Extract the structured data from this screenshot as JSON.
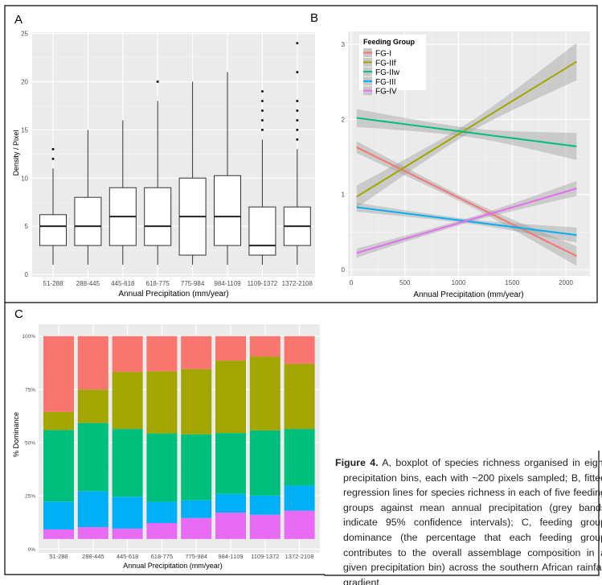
{
  "caption": {
    "label": "Figure 4.",
    "text": "A, boxplot of species richness organised in eight precipitation bins, each with ~200 pixels sampled; B, fitted regression lines for species richness in each of five feeding groups against mean annual precipitation (grey bands indicate 95% confidence intervals); C, feeding group dominance (the percentage that each feeding group contributes to the overall assemblage composition in a given precipitation bin) across the southern African rainfall gradient."
  },
  "chart_data": [
    {
      "panel": "A",
      "type": "boxplot",
      "xlabel": "Annual Precipitation (mm/year)",
      "ylabel": "Density / Pixel",
      "ylim": [
        0,
        25
      ],
      "yticks": [
        0,
        5,
        10,
        15,
        20,
        25
      ],
      "grid": true,
      "categories": [
        "51-288",
        "288-445",
        "445-618",
        "618-775",
        "775-984",
        "984-1109",
        "1109-1372",
        "1372-2108"
      ],
      "boxes": [
        {
          "min": 1,
          "q1": 3,
          "median": 5,
          "q3": 6.2,
          "max": 11,
          "outliers": [
            12,
            13
          ]
        },
        {
          "min": 1,
          "q1": 3,
          "median": 5,
          "q3": 8,
          "max": 15,
          "outliers": []
        },
        {
          "min": 1,
          "q1": 3,
          "median": 6,
          "q3": 9,
          "max": 16,
          "outliers": []
        },
        {
          "min": 1,
          "q1": 3,
          "median": 5,
          "q3": 9,
          "max": 18,
          "outliers": [
            20
          ]
        },
        {
          "min": 1,
          "q1": 2,
          "median": 6,
          "q3": 10,
          "max": 20,
          "outliers": []
        },
        {
          "min": 1,
          "q1": 3,
          "median": 6,
          "q3": 10.25,
          "max": 21,
          "outliers": []
        },
        {
          "min": 1,
          "q1": 2,
          "median": 3,
          "q3": 7,
          "max": 14,
          "outliers": [
            15,
            16,
            17,
            18,
            19
          ]
        },
        {
          "min": 1,
          "q1": 3,
          "median": 5,
          "q3": 7,
          "max": 13,
          "outliers": [
            14,
            15,
            16,
            17,
            18,
            21,
            24
          ]
        }
      ]
    },
    {
      "panel": "B",
      "type": "line",
      "xlabel": "Annual Precipitation (mm/year)",
      "ylabel": "",
      "xlim": [
        0,
        2200
      ],
      "ylim": [
        0,
        3
      ],
      "xticks": [
        0,
        500,
        1000,
        1500,
        2000
      ],
      "yticks": [
        0,
        1,
        2,
        3
      ],
      "grid": true,
      "legend": {
        "title": "Feeding Group",
        "position": "top-left"
      },
      "series": [
        {
          "name": "FG-I",
          "color": "#F8766D",
          "x": [
            50,
            2100
          ],
          "y": [
            1.63,
            0.18
          ],
          "ci_halfwidth": [
            0.08,
            0.04,
            0.13
          ]
        },
        {
          "name": "FG-IIf",
          "color": "#A3A500",
          "x": [
            50,
            2100
          ],
          "y": [
            0.97,
            2.77
          ],
          "ci_halfwidth": [
            0.15,
            0.07,
            0.25
          ]
        },
        {
          "name": "FG-IIw",
          "color": "#00BF7D",
          "x": [
            50,
            2100
          ],
          "y": [
            2.02,
            1.64
          ],
          "ci_halfwidth": [
            0.12,
            0.06,
            0.18
          ]
        },
        {
          "name": "FG-III",
          "color": "#00B0F6",
          "x": [
            50,
            2100
          ],
          "y": [
            0.83,
            0.46
          ],
          "ci_halfwidth": [
            0.06,
            0.03,
            0.1
          ]
        },
        {
          "name": "FG-IV",
          "color": "#E76BF3",
          "x": [
            50,
            2100
          ],
          "y": [
            0.22,
            1.08
          ],
          "ci_halfwidth": [
            0.06,
            0.03,
            0.1
          ]
        }
      ]
    },
    {
      "panel": "C",
      "type": "bar",
      "stacked": true,
      "xlabel": "Annual Precipitation (mm/year)",
      "ylabel": "% Dominance",
      "ylim": [
        0,
        100
      ],
      "yticks": [
        "0%",
        "25%",
        "50%",
        "75%",
        "100%"
      ],
      "grid": true,
      "bar_start": 4.7,
      "categories": [
        "51-288",
        "288-445",
        "445-618",
        "618-775",
        "775-984",
        "984-1109",
        "1109-1372",
        "1372-2108"
      ],
      "series": [
        {
          "color": "#E76BF3",
          "values": [
            4.5,
            5.6,
            4.9,
            7.5,
            9.9,
            12.4,
            11.4,
            13.3
          ]
        },
        {
          "color": "#00B0F6",
          "values": [
            13.1,
            16.9,
            15.0,
            10.0,
            8.3,
            8.8,
            9.0,
            11.8
          ]
        },
        {
          "color": "#00BF7D",
          "values": [
            33.6,
            32.0,
            31.8,
            32.1,
            31.0,
            28.6,
            30.6,
            26.6
          ]
        },
        {
          "color": "#A3A500",
          "values": [
            8.5,
            15.7,
            26.8,
            29.2,
            30.6,
            34.0,
            34.7,
            30.6
          ]
        },
        {
          "color": "#F8766D",
          "values": [
            35.6,
            25.1,
            16.8,
            16.5,
            15.5,
            11.5,
            9.6,
            13.0
          ]
        }
      ]
    }
  ],
  "panels": {
    "a": "A",
    "b": "B",
    "c": "C"
  }
}
